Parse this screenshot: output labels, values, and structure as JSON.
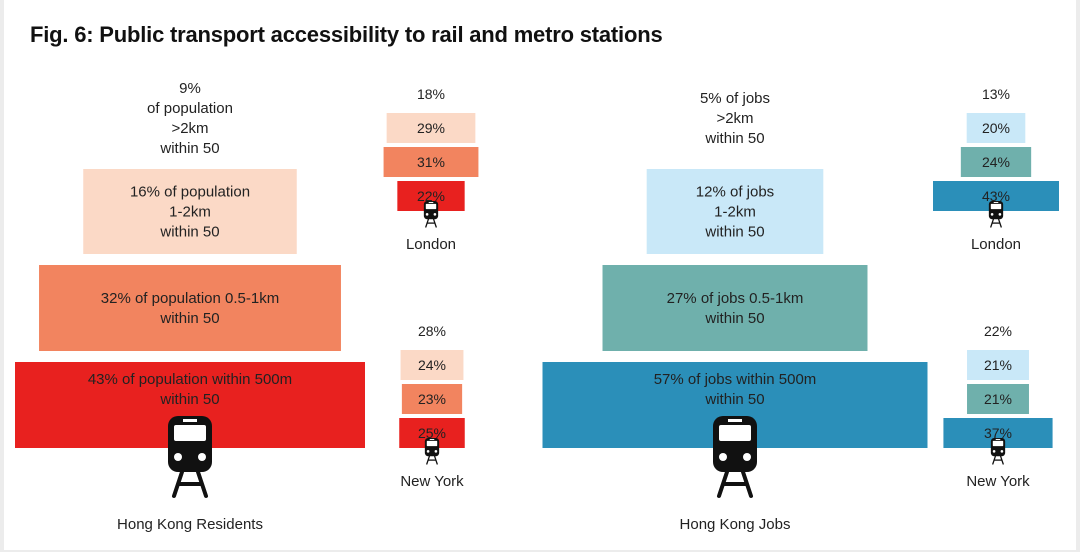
{
  "title": "Fig. 6: Public transport accessibility to rail and metro stations",
  "colors": {
    "residents": [
      "#ffffff",
      "#fbd9c6",
      "#f2845f",
      "#e8211f"
    ],
    "jobs": [
      "#ffffff",
      "#c9e8f8",
      "#6fb0ac",
      "#2b8fb9"
    ]
  },
  "icon": "metro-train-icon",
  "chart_data": [
    {
      "type": "bar",
      "name": "Hong Kong Residents",
      "role": "main",
      "categories": [
        ">2km",
        "1-2km",
        "0.5-1km",
        "within 500m"
      ],
      "values": [
        9,
        16,
        32,
        43
      ],
      "labels": [
        [
          "9%",
          "of population",
          ">2km",
          "within 50"
        ],
        [
          "16% of population",
          "1-2km",
          "within 50"
        ],
        [
          "32% of population 0.5-1km",
          "within 50"
        ],
        [
          "43% of population within 500m",
          "within 50"
        ]
      ]
    },
    {
      "type": "bar",
      "name": "London",
      "role": "small",
      "group": "residents",
      "values": [
        18,
        29,
        31,
        22
      ],
      "labels": [
        "18%",
        "29%",
        "31%",
        "22%"
      ]
    },
    {
      "type": "bar",
      "name": "New York",
      "role": "small",
      "group": "residents",
      "values": [
        28,
        24,
        23,
        25
      ],
      "labels": [
        "28%",
        "24%",
        "23%",
        "25%"
      ]
    },
    {
      "type": "bar",
      "name": "Hong Kong Jobs",
      "role": "main",
      "categories": [
        ">2km",
        "1-2km",
        "0.5-1km",
        "within 500m"
      ],
      "values": [
        5,
        12,
        27,
        57
      ],
      "labels": [
        [
          "5% of jobs",
          ">2km",
          "within 50"
        ],
        [
          "12% of jobs",
          "1-2km",
          "within 50"
        ],
        [
          "27% of jobs 0.5-1km",
          "within 50"
        ],
        [
          "57% of jobs within 500m",
          "within 50"
        ]
      ]
    },
    {
      "type": "bar",
      "name": "London",
      "role": "small",
      "group": "jobs",
      "values": [
        13,
        20,
        24,
        43
      ],
      "labels": [
        "13%",
        "20%",
        "24%",
        "43%"
      ]
    },
    {
      "type": "bar",
      "name": "New York",
      "role": "small",
      "group": "jobs",
      "values": [
        22,
        21,
        21,
        37
      ],
      "labels": [
        "22%",
        "21%",
        "21%",
        "37%"
      ]
    }
  ]
}
